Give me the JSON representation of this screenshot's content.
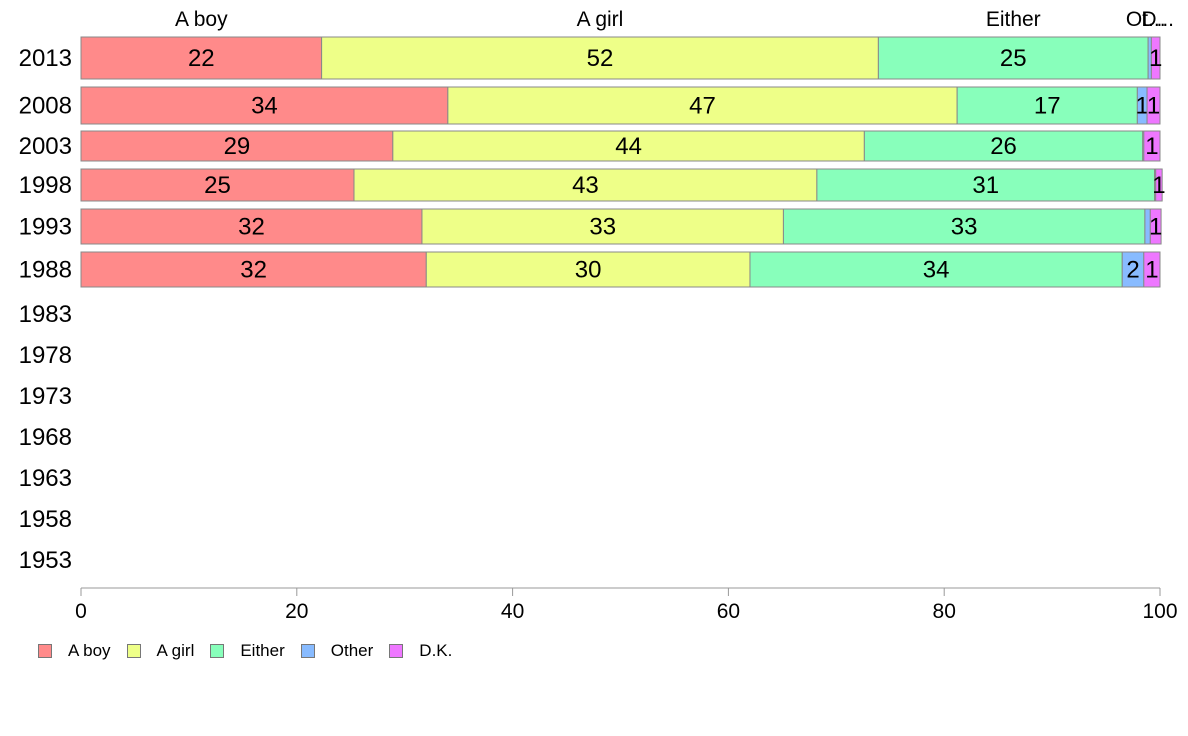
{
  "chart_data": {
    "type": "bar",
    "orientation": "horizontal",
    "stacked": true,
    "categories": [
      "2013",
      "2008",
      "2003",
      "1998",
      "1993",
      "1988",
      "1983",
      "1978",
      "1973",
      "1968",
      "1963",
      "1958",
      "1953"
    ],
    "series": [
      {
        "name": "A boy",
        "color": "#ff8a8a",
        "values": [
          22.3,
          34.0,
          28.9,
          25.3,
          31.6,
          32.0,
          null,
          null,
          null,
          null,
          null,
          null,
          null
        ],
        "labels": [
          "22",
          "34",
          "29",
          "25",
          "32",
          "32",
          "",
          "",
          "",
          "",
          "",
          "",
          ""
        ]
      },
      {
        "name": "A girl",
        "color": "#eeff88",
        "values": [
          51.6,
          47.2,
          43.7,
          42.9,
          33.5,
          30.0,
          null,
          null,
          null,
          null,
          null,
          null,
          null
        ],
        "labels": [
          "52",
          "47",
          "44",
          "43",
          "33",
          "30",
          "",
          "",
          "",
          "",
          "",
          "",
          ""
        ]
      },
      {
        "name": "Either",
        "color": "#88ffbb",
        "values": [
          25.0,
          16.7,
          25.8,
          31.3,
          33.5,
          34.5,
          null,
          null,
          null,
          null,
          null,
          null,
          null
        ],
        "labels": [
          "25",
          "17",
          "26",
          "31",
          "33",
          "34",
          "",
          "",
          "",
          "",
          "",
          "",
          ""
        ]
      },
      {
        "name": "Other",
        "color": "#88bbff",
        "values": [
          0.3,
          0.9,
          0.1,
          0.1,
          0.5,
          2.0,
          null,
          null,
          null,
          null,
          null,
          null,
          null
        ],
        "labels": [
          "",
          "1",
          "",
          "",
          "",
          "2",
          "",
          "",
          "",
          "",
          "",
          "",
          ""
        ]
      },
      {
        "name": "D.K.",
        "color": "#ee77ff",
        "values": [
          0.8,
          1.2,
          1.5,
          0.6,
          1.0,
          1.5,
          null,
          null,
          null,
          null,
          null,
          null,
          null
        ],
        "labels": [
          "1",
          "1",
          "1",
          "1",
          "1",
          "1",
          "",
          "",
          "",
          "",
          "",
          "",
          ""
        ]
      }
    ],
    "top_labels": [
      "A boy",
      "A girl",
      "Either",
      "Ot...",
      "D..."
    ],
    "xlim": [
      0,
      100
    ],
    "xticks": [
      "0",
      "20",
      "40",
      "60",
      "80",
      "100"
    ],
    "grid": false,
    "legend_position": "bottom-left"
  }
}
